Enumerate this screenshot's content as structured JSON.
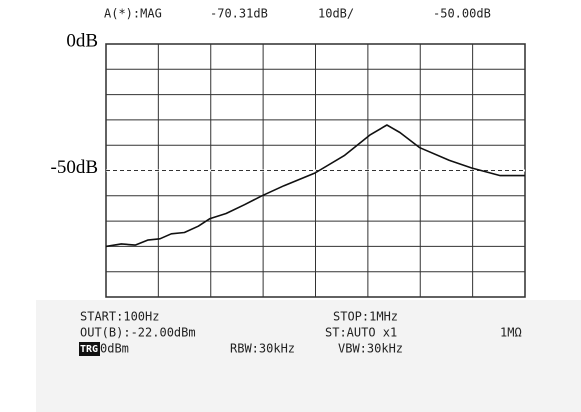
{
  "chart_data": {
    "type": "line",
    "status_top": [
      "A(*):MAG",
      "-70.31dB",
      "10dB/",
      "-50.00dB"
    ],
    "status_bottom": [
      [
        "START:100Hz",
        "STOP:1MHz"
      ],
      [
        "OUT(B):-22.00dBm",
        "ST:AUTO x1",
        "1MΩ"
      ],
      [
        "TRG",
        "0dBm",
        "RBW:30kHz",
        "VBW:30kHz"
      ]
    ],
    "x": [
      100,
      140,
      190,
      250,
      327,
      420,
      560,
      760,
      984,
      1400,
      2100,
      3080,
      5000,
      9890,
      19000,
      33000,
      48000,
      64000,
      99000,
      190000,
      310000,
      580000,
      1000000
    ],
    "series": [
      {
        "name": "A(*):MAG",
        "color": "#111111",
        "values": [
          -80,
          -79,
          -79.5,
          -77.5,
          -77,
          -75,
          -74.5,
          -72,
          -69,
          -67,
          -63.5,
          -60,
          -56,
          -51,
          -44,
          -36,
          -32,
          -35,
          -41,
          -46,
          -49,
          -52,
          -52
        ]
      }
    ],
    "xlim": [
      100,
      1000000
    ],
    "xticks": [
      100,
      316,
      1000,
      3162,
      10000,
      31623,
      100000,
      316228,
      1000000
    ],
    "xlog": true,
    "ylim": [
      -100,
      0
    ],
    "yticks": [
      {
        "value": 0,
        "label": "0dB"
      },
      {
        "value": -50,
        "label": "-50dB"
      }
    ],
    "ygrid": [
      -100,
      -90,
      -80,
      -70,
      -60,
      -50,
      -40,
      -30,
      -20,
      -10,
      0
    ],
    "reference": -50,
    "grid": true
  }
}
